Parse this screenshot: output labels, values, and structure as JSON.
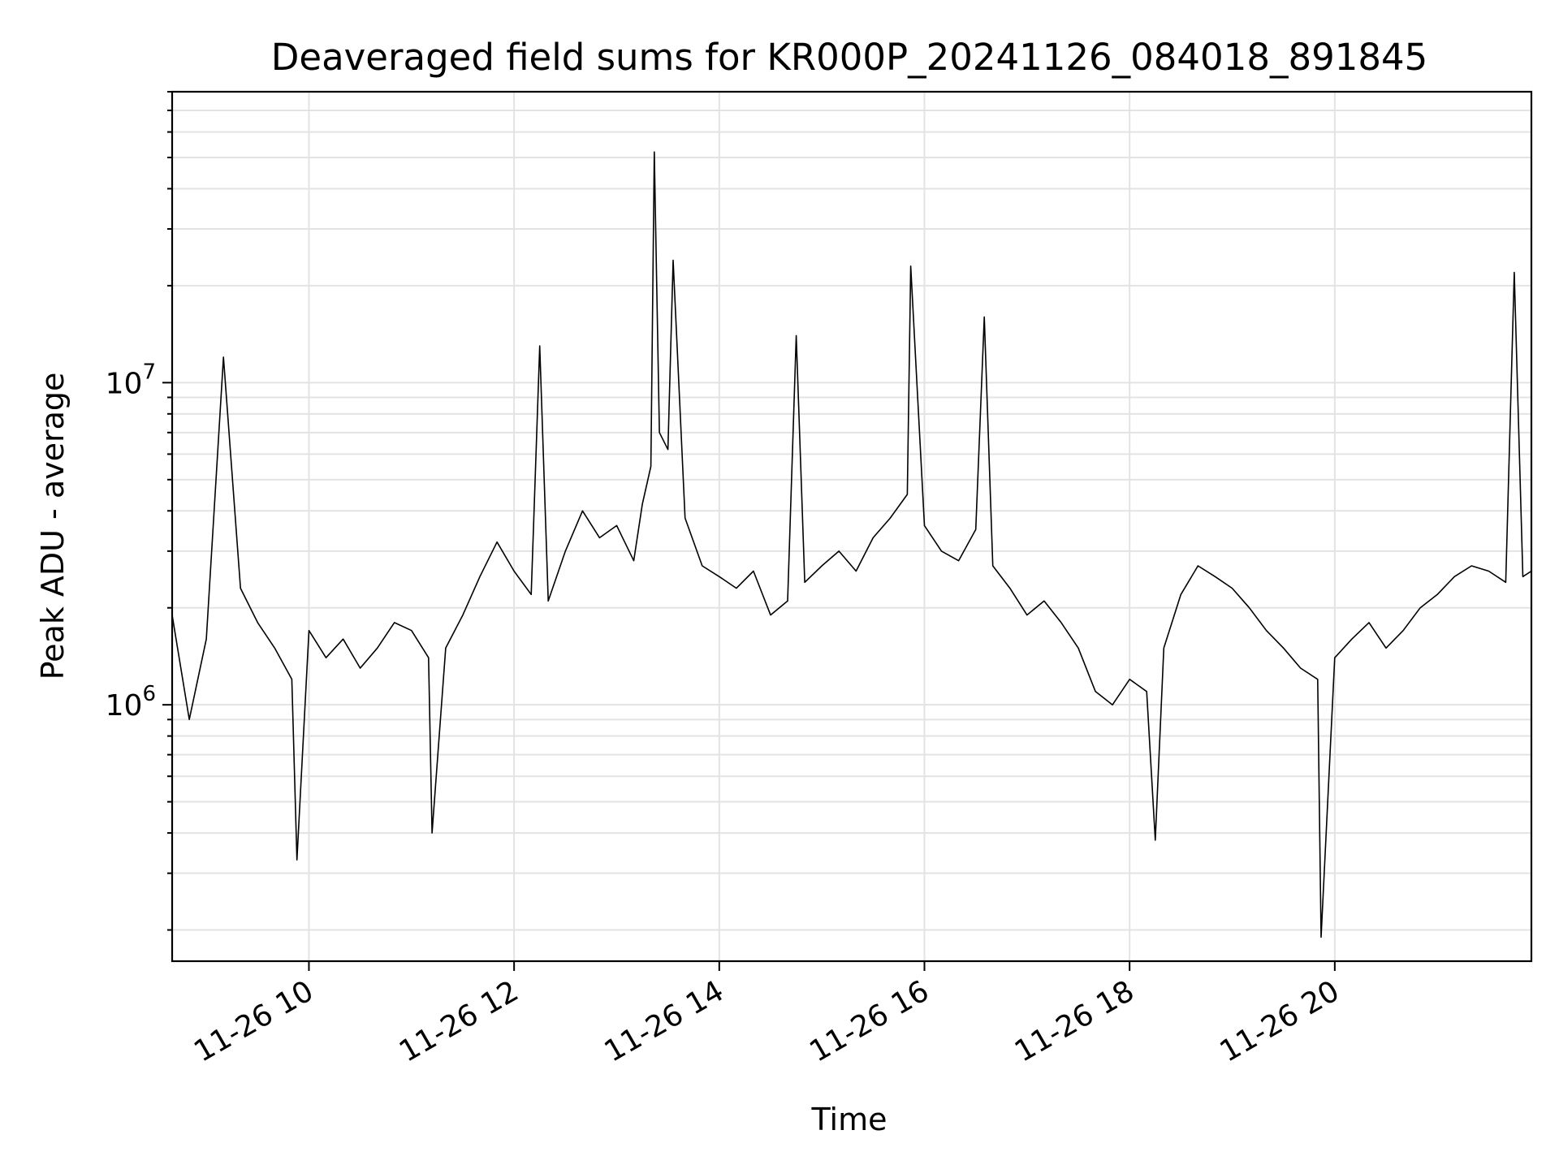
{
  "chart_data": {
    "type": "line",
    "title": "Deaveraged field sums for KR000P_20241126_084018_891845",
    "xlabel": "Time",
    "ylabel": "Peak ADU - average",
    "x_axis": {
      "type": "datetime",
      "range": [
        "2024-11-26 08:40",
        "2024-11-26 21:55"
      ],
      "ticks": [
        {
          "value": "2024-11-26 10:00",
          "label": "11-26 10"
        },
        {
          "value": "2024-11-26 12:00",
          "label": "11-26 12"
        },
        {
          "value": "2024-11-26 14:00",
          "label": "11-26 14"
        },
        {
          "value": "2024-11-26 16:00",
          "label": "11-26 16"
        },
        {
          "value": "2024-11-26 18:00",
          "label": "11-26 18"
        },
        {
          "value": "2024-11-26 20:00",
          "label": "11-26 20"
        }
      ]
    },
    "y_axis": {
      "scale": "log",
      "range": [
        160000,
        80000000
      ],
      "ticks": [
        {
          "value": 1000000,
          "base": "10",
          "exp": "6"
        },
        {
          "value": 10000000,
          "base": "10",
          "exp": "7"
        }
      ]
    },
    "grid": true,
    "legend": "none",
    "series": [
      {
        "color": "#000000",
        "points": [
          [
            "2024-11-26 08:40",
            1900000
          ],
          [
            "2024-11-26 08:50",
            900000
          ],
          [
            "2024-11-26 09:00",
            1600000
          ],
          [
            "2024-11-26 09:10",
            12000000
          ],
          [
            "2024-11-26 09:20",
            2300000
          ],
          [
            "2024-11-26 09:30",
            1800000
          ],
          [
            "2024-11-26 09:40",
            1500000
          ],
          [
            "2024-11-26 09:50",
            1200000
          ],
          [
            "2024-11-26 09:53",
            330000
          ],
          [
            "2024-11-26 10:00",
            1700000
          ],
          [
            "2024-11-26 10:10",
            1400000
          ],
          [
            "2024-11-26 10:20",
            1600000
          ],
          [
            "2024-11-26 10:30",
            1300000
          ],
          [
            "2024-11-26 10:40",
            1500000
          ],
          [
            "2024-11-26 10:50",
            1800000
          ],
          [
            "2024-11-26 11:00",
            1700000
          ],
          [
            "2024-11-26 11:10",
            1400000
          ],
          [
            "2024-11-26 11:12",
            400000
          ],
          [
            "2024-11-26 11:20",
            1500000
          ],
          [
            "2024-11-26 11:30",
            1900000
          ],
          [
            "2024-11-26 11:40",
            2500000
          ],
          [
            "2024-11-26 11:50",
            3200000
          ],
          [
            "2024-11-26 12:00",
            2600000
          ],
          [
            "2024-11-26 12:10",
            2200000
          ],
          [
            "2024-11-26 12:15",
            13000000
          ],
          [
            "2024-11-26 12:20",
            2100000
          ],
          [
            "2024-11-26 12:30",
            3000000
          ],
          [
            "2024-11-26 12:40",
            4000000
          ],
          [
            "2024-11-26 12:50",
            3300000
          ],
          [
            "2024-11-26 13:00",
            3600000
          ],
          [
            "2024-11-26 13:10",
            2800000
          ],
          [
            "2024-11-26 13:15",
            4200000
          ],
          [
            "2024-11-26 13:20",
            5500000
          ],
          [
            "2024-11-26 13:22",
            52000000
          ],
          [
            "2024-11-26 13:25",
            7000000
          ],
          [
            "2024-11-26 13:30",
            6200000
          ],
          [
            "2024-11-26 13:33",
            24000000
          ],
          [
            "2024-11-26 13:40",
            3800000
          ],
          [
            "2024-11-26 13:50",
            2700000
          ],
          [
            "2024-11-26 14:00",
            2500000
          ],
          [
            "2024-11-26 14:10",
            2300000
          ],
          [
            "2024-11-26 14:20",
            2600000
          ],
          [
            "2024-11-26 14:30",
            1900000
          ],
          [
            "2024-11-26 14:40",
            2100000
          ],
          [
            "2024-11-26 14:45",
            14000000
          ],
          [
            "2024-11-26 14:50",
            2400000
          ],
          [
            "2024-11-26 15:00",
            2700000
          ],
          [
            "2024-11-26 15:10",
            3000000
          ],
          [
            "2024-11-26 15:20",
            2600000
          ],
          [
            "2024-11-26 15:30",
            3300000
          ],
          [
            "2024-11-26 15:40",
            3800000
          ],
          [
            "2024-11-26 15:50",
            4500000
          ],
          [
            "2024-11-26 15:52",
            23000000
          ],
          [
            "2024-11-26 16:00",
            3600000
          ],
          [
            "2024-11-26 16:10",
            3000000
          ],
          [
            "2024-11-26 16:20",
            2800000
          ],
          [
            "2024-11-26 16:30",
            3500000
          ],
          [
            "2024-11-26 16:35",
            16000000
          ],
          [
            "2024-11-26 16:40",
            2700000
          ],
          [
            "2024-11-26 16:50",
            2300000
          ],
          [
            "2024-11-26 17:00",
            1900000
          ],
          [
            "2024-11-26 17:10",
            2100000
          ],
          [
            "2024-11-26 17:20",
            1800000
          ],
          [
            "2024-11-26 17:30",
            1500000
          ],
          [
            "2024-11-26 17:40",
            1100000
          ],
          [
            "2024-11-26 17:50",
            1000000
          ],
          [
            "2024-11-26 18:00",
            1200000
          ],
          [
            "2024-11-26 18:10",
            1100000
          ],
          [
            "2024-11-26 18:15",
            380000
          ],
          [
            "2024-11-26 18:20",
            1500000
          ],
          [
            "2024-11-26 18:30",
            2200000
          ],
          [
            "2024-11-26 18:40",
            2700000
          ],
          [
            "2024-11-26 18:50",
            2500000
          ],
          [
            "2024-11-26 19:00",
            2300000
          ],
          [
            "2024-11-26 19:10",
            2000000
          ],
          [
            "2024-11-26 19:20",
            1700000
          ],
          [
            "2024-11-26 19:30",
            1500000
          ],
          [
            "2024-11-26 19:40",
            1300000
          ],
          [
            "2024-11-26 19:50",
            1200000
          ],
          [
            "2024-11-26 19:52",
            190000
          ],
          [
            "2024-11-26 20:00",
            1400000
          ],
          [
            "2024-11-26 20:10",
            1600000
          ],
          [
            "2024-11-26 20:20",
            1800000
          ],
          [
            "2024-11-26 20:30",
            1500000
          ],
          [
            "2024-11-26 20:40",
            1700000
          ],
          [
            "2024-11-26 20:50",
            2000000
          ],
          [
            "2024-11-26 21:00",
            2200000
          ],
          [
            "2024-11-26 21:10",
            2500000
          ],
          [
            "2024-11-26 21:20",
            2700000
          ],
          [
            "2024-11-26 21:30",
            2600000
          ],
          [
            "2024-11-26 21:40",
            2400000
          ],
          [
            "2024-11-26 21:45",
            22000000
          ],
          [
            "2024-11-26 21:50",
            2500000
          ],
          [
            "2024-11-26 21:55",
            2600000
          ]
        ]
      }
    ]
  }
}
